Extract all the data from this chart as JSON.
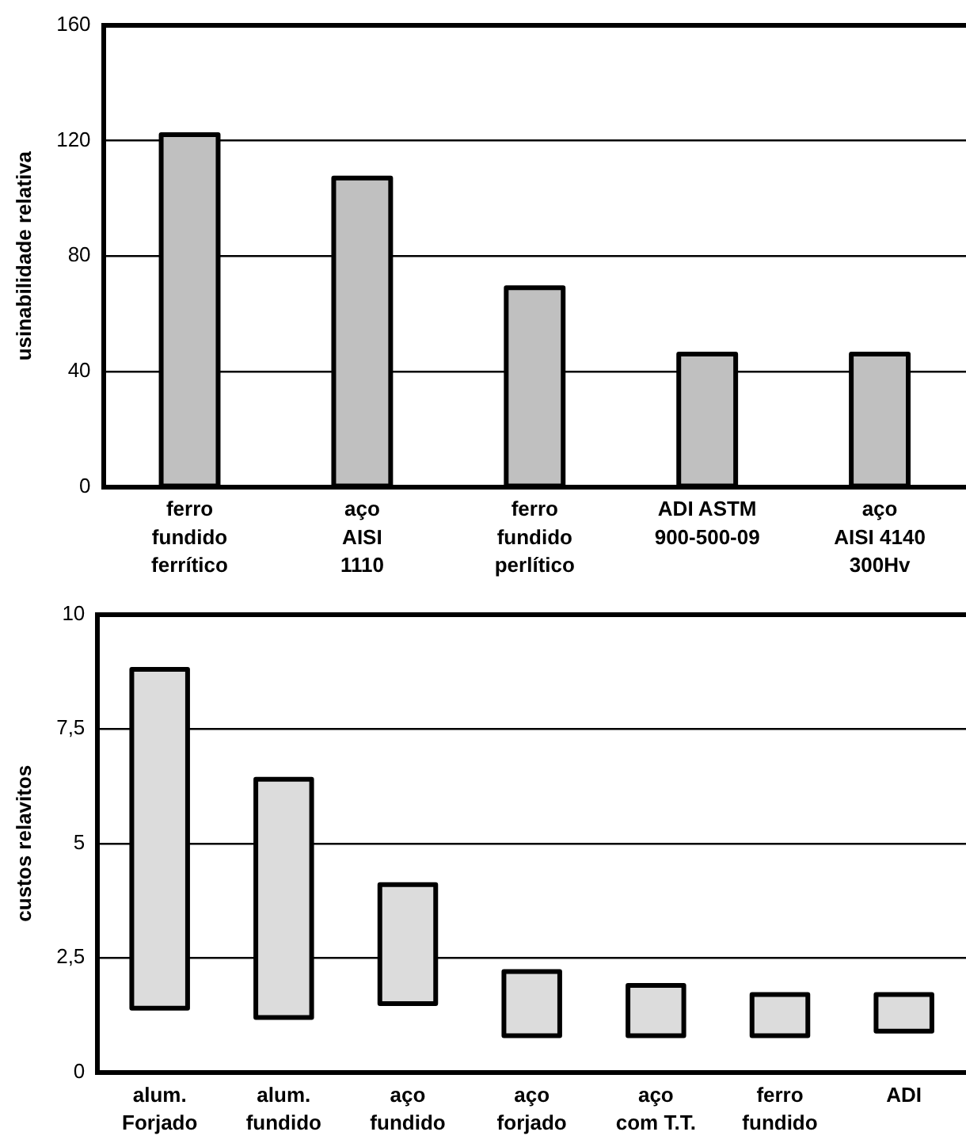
{
  "chart_data": [
    {
      "type": "bar",
      "ylabel": "usinabilidade relativa",
      "categories": [
        "ferro\nfundido\nferrítico",
        "aço\nAISI\n1110",
        "ferro\nfundido\nperlítico",
        "ADI ASTM\n900-500-09",
        "aço\nAISI 4140\n300Hv"
      ],
      "values": [
        122,
        107,
        69,
        46,
        46
      ],
      "color": "#c0c0c0",
      "ylim": [
        0,
        160
      ],
      "yticks": [
        0,
        40,
        80,
        120,
        160
      ],
      "grid": "y",
      "legend": false
    },
    {
      "type": "bar",
      "ylabel": "custos relavitos",
      "categories": [
        "alum.\nForjado",
        "alum.\nfundido",
        "aço\nfundido",
        "aço\nforjado",
        "aço\ncom T.T.",
        "ferro\nfundido",
        "ADI"
      ],
      "base": [
        1.4,
        1.2,
        1.5,
        0.8,
        0.8,
        0.8,
        0.9
      ],
      "values": [
        7.4,
        5.2,
        2.6,
        1.4,
        1.1,
        0.9,
        0.8
      ],
      "color": "#dcdcdc",
      "ylim": [
        0,
        10
      ],
      "yticks": [
        0,
        {
          "value": 7.5,
          "label": "7,5"
        },
        5,
        {
          "value": 2.5,
          "label": "2,5"
        },
        10
      ],
      "grid": "y",
      "legend": false
    }
  ]
}
